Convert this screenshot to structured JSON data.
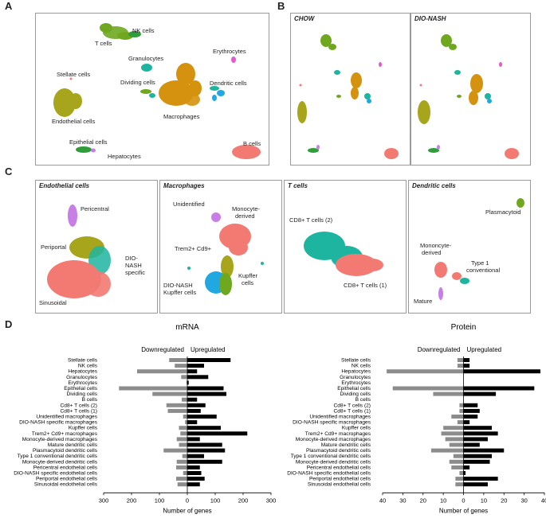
{
  "panel_labels": {
    "a": "A",
    "b": "B",
    "c": "C",
    "d": "D"
  },
  "panel_a": {
    "clusters": {
      "nk": "NK cells",
      "t": "T cells",
      "gran": "Granulocytes",
      "ery": "Erythrocytes",
      "stellate": "Stellate cells",
      "dividing": "Dividing cells",
      "dendritic": "Dendritic cells",
      "macro": "Macrophages",
      "endo": "Endothelial cells",
      "epi": "Epithelial cells",
      "hep": "Hepatocytes",
      "b": "B cells"
    }
  },
  "panel_b": {
    "left_title": "CHOW",
    "right_title": "DIO-NASH"
  },
  "panel_c": {
    "endothelial": {
      "title": "Endothelial cells",
      "pericentral": "Pericentral",
      "periportal": "Periportal",
      "dio1": "DIO-",
      "dio2": "NASH",
      "dio3": "specific",
      "sinusoidal": "Sinusoidal"
    },
    "macrophages": {
      "title": "Macrophages",
      "unidentified": "Unidentified",
      "mono1": "Monocyte-",
      "mono2": "derived",
      "trem": "Trem2+ Cd9+",
      "dnk1": "DIO-NASH",
      "dnk2": "Kupffer cells",
      "k1": "Kupffer",
      "k2": "cells"
    },
    "tcells": {
      "title": "T cells",
      "cd8_2": "CD8+ T cells (2)",
      "cd8_1": "CD8+ T cells (1)"
    },
    "dendritic": {
      "title": "Dendritic cells",
      "plasma": "Plasmacytoid",
      "mono1": "Mononcyte-",
      "mono2": "derived",
      "t1a": "Type 1",
      "t1b": "conventional",
      "mature": "Mature"
    }
  },
  "colors": {
    "green": "#6fa81f",
    "teal": "#1db5a0",
    "orange": "#d4920f",
    "olive": "#a6a51c",
    "pink": "#f27a72",
    "purple": "#c77ee6",
    "blue": "#22a8e0",
    "magenta": "#e25ad0",
    "bar_up": "#000000",
    "bar_down": "#8c8c8c"
  },
  "chart_data": [
    {
      "type": "bar",
      "title": "mRNA",
      "xlabel": "Number of genes",
      "left_label": "Downregulated",
      "right_label": "Upregulated",
      "xlim": [
        -300,
        300
      ],
      "ticks": [
        300,
        200,
        100,
        0,
        100,
        200,
        300
      ],
      "categories": [
        "Stellate cells",
        "NK cells",
        "Hepatocytes",
        "Granulocytes",
        "Erythrocytes",
        "Epithelial cells",
        "Dividing cells",
        "B cells",
        "Cd8+ T cells (2)",
        "Cd8+ T cells (1)",
        "Unidentified macrophages",
        "DIO-NASH specific macrophages",
        "Kupffer cells",
        "Trem2+ Cd9+ macrophages",
        "Monocyte-derived macrophages",
        "Mature dendritic cells",
        "Plasmacytoid dendritic cells",
        "Type 1 conventional dendritic cells",
        "Monocyte-derived dendritic cells",
        "Pericentral endothelial cells",
        "DIO-NASH specific endothelial cells",
        "Periportal endothelial cells",
        "Sinusoidal endothelial cells"
      ],
      "series": [
        {
          "name": "Downregulated",
          "values": [
            -65,
            -45,
            -180,
            -22,
            -3,
            -245,
            -125,
            -20,
            -75,
            -70,
            -15,
            -8,
            -30,
            -25,
            -38,
            -30,
            -85,
            -18,
            -38,
            -40,
            -15,
            -40,
            -35
          ]
        },
        {
          "name": "Upregulated",
          "values": [
            155,
            60,
            35,
            75,
            5,
            130,
            140,
            35,
            65,
            48,
            105,
            35,
            120,
            215,
            45,
            125,
            135,
            60,
            125,
            45,
            50,
            62,
            45
          ]
        }
      ]
    },
    {
      "type": "bar",
      "title": "Protein",
      "xlabel": "Number of genes",
      "left_label": "Downregulated",
      "right_label": "Upregulated",
      "xlim": [
        -40,
        40
      ],
      "ticks": [
        40,
        30,
        20,
        10,
        0,
        10,
        20,
        30,
        40
      ],
      "categories": [
        "Stellate cells",
        "NK cells",
        "Hepatocytes",
        "Granulocytes",
        "Erythrocytes",
        "Epithelial cells",
        "Dividing cells",
        "B cells",
        "Cd8+ T cells (2)",
        "Cd8+ T cells (1)",
        "Unidentified macrophages",
        "DIO-NASH specific macrophages",
        "Kupffer cells",
        "Trem2+ Cd9+ macrophages",
        "Monocyte-derived macrophages",
        "Mature dendritic cells",
        "Plasmacytoid dendritic cells",
        "Type 1 conventional dendritic cells",
        "Monocyte-derived dendritic cells",
        "Pericentral endothelial cells",
        "DIO-NASH specific endothelial cells",
        "Periportal endothelial cells",
        "Sinusoidal endothelial cells"
      ],
      "series": [
        {
          "name": "Downregulated",
          "values": [
            -3,
            -3,
            -38,
            0,
            0,
            -35,
            -15,
            0,
            -2,
            -2,
            -6,
            -3,
            -10,
            -11,
            -9,
            -7,
            -16,
            -5,
            -7,
            -6,
            -2,
            -4,
            -4
          ]
        },
        {
          "name": "Upregulated",
          "values": [
            3,
            3,
            38,
            0,
            0,
            35,
            16,
            0,
            7,
            8,
            7,
            3,
            14,
            17,
            12,
            8,
            20,
            14,
            13,
            3,
            1,
            17,
            12
          ]
        }
      ]
    }
  ]
}
